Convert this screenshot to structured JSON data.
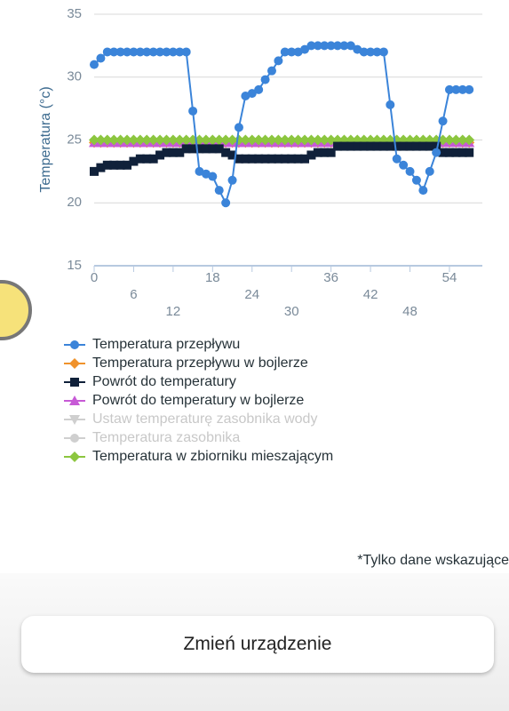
{
  "chart_data": {
    "type": "line",
    "y_label": "Temperatura (°c)",
    "x": [
      0,
      1,
      2,
      3,
      4,
      5,
      6,
      7,
      8,
      9,
      10,
      11,
      12,
      13,
      14,
      15,
      16,
      17,
      18,
      19,
      20,
      21,
      22,
      23,
      24,
      25,
      26,
      27,
      28,
      29,
      30,
      31,
      32,
      33,
      34,
      35,
      36,
      37,
      38,
      39,
      40,
      41,
      42,
      43,
      44,
      45,
      46,
      47,
      48,
      49,
      50,
      51,
      52,
      53,
      54,
      55,
      56,
      57
    ],
    "xlim": [
      0,
      59
    ],
    "xticks": [
      0,
      6,
      12,
      18,
      24,
      30,
      36,
      42,
      48,
      54
    ],
    "ylim": [
      15,
      35
    ],
    "yticks": [
      15,
      20,
      25,
      30,
      35
    ],
    "grid": true,
    "series": [
      {
        "name": "Temperatura przepływu",
        "color": "#3b84d9",
        "marker": "circle",
        "visible": true,
        "values": [
          31,
          31.5,
          32,
          32,
          32,
          32,
          32,
          32,
          32,
          32,
          32,
          32,
          32,
          32,
          32,
          27.3,
          22.5,
          22.3,
          22.1,
          21,
          20,
          21.8,
          26,
          28.5,
          28.7,
          29,
          29.8,
          30.5,
          31.3,
          32,
          32,
          32,
          32.2,
          32.5,
          32.5,
          32.5,
          32.5,
          32.5,
          32.5,
          32.5,
          32.2,
          32,
          32,
          32,
          32,
          27.8,
          23.5,
          23,
          22.5,
          21.8,
          21,
          22.5,
          24,
          26.5,
          29,
          29,
          29,
          29
        ]
      },
      {
        "name": "Temperatura przepływu w bojlerze",
        "color": "#f0922b",
        "marker": "diamond",
        "visible": true,
        "values": [
          24.8,
          24.8,
          24.8,
          24.8,
          24.8,
          24.8,
          24.8,
          24.8,
          24.8,
          24.8,
          24.8,
          24.8,
          24.8,
          24.8,
          24.8,
          24.8,
          24.8,
          24.8,
          24.8,
          24.8,
          24.8,
          24.8,
          24.8,
          24.8,
          24.8,
          24.8,
          24.8,
          24.8,
          24.8,
          24.8,
          24.8,
          24.8,
          24.8,
          24.8,
          24.8,
          24.8,
          24.8,
          24.8,
          24.8,
          24.8,
          24.8,
          24.8,
          24.8,
          24.8,
          24.8,
          24.8,
          24.8,
          24.8,
          24.8,
          24.8,
          24.8,
          24.8,
          24.8,
          24.8,
          24.8,
          24.8,
          24.8,
          24.8
        ]
      },
      {
        "name": "Powrót do temperatury",
        "color": "#10213a",
        "marker": "square",
        "visible": true,
        "values": [
          22.5,
          22.8,
          23,
          23,
          23,
          23,
          23.3,
          23.5,
          23.5,
          23.5,
          23.8,
          24,
          24,
          24,
          24.3,
          24.3,
          24.3,
          24.3,
          24.3,
          24.3,
          24,
          23.8,
          23.5,
          23.5,
          23.5,
          23.5,
          23.5,
          23.5,
          23.5,
          23.5,
          23.5,
          23.5,
          23.5,
          23.8,
          24,
          24,
          24,
          24.5,
          24.5,
          24.5,
          24.5,
          24.5,
          24.5,
          24.5,
          24.5,
          24.5,
          24.5,
          24.5,
          24.5,
          24.5,
          24.5,
          24.5,
          24.5,
          24,
          24,
          24,
          24,
          24
        ]
      },
      {
        "name": "Powrót do temperatury w bojlerze",
        "color": "#c75ad6",
        "marker": "triangle",
        "visible": true,
        "values": [
          24.8,
          24.8,
          24.8,
          24.8,
          24.8,
          24.8,
          24.8,
          24.8,
          24.8,
          24.8,
          24.8,
          24.8,
          24.8,
          24.8,
          24.8,
          24.8,
          24.8,
          24.8,
          24.8,
          24.8,
          24.8,
          24.8,
          24.8,
          24.8,
          24.8,
          24.8,
          24.8,
          24.8,
          24.8,
          24.8,
          24.8,
          24.8,
          24.8,
          24.8,
          24.8,
          24.8,
          24.8,
          24.8,
          24.8,
          24.8,
          24.8,
          24.8,
          24.8,
          24.8,
          24.8,
          24.8,
          24.8,
          24.8,
          24.8,
          24.8,
          24.8,
          24.8,
          24.8,
          24.8,
          24.8,
          24.8,
          24.8,
          24.8
        ]
      },
      {
        "name": "Ustaw temperaturę zasobnika wody",
        "color": "#cfcfcf",
        "marker": "triangle-down",
        "visible": false
      },
      {
        "name": "Temperatura zasobnika",
        "color": "#cfcfcf",
        "marker": "circle",
        "visible": false
      },
      {
        "name": "Temperatura w zbiorniku mieszającym",
        "color": "#8cc63f",
        "marker": "diamond",
        "visible": true,
        "values": [
          25,
          25,
          25,
          25,
          25,
          25,
          25,
          25,
          25,
          25,
          25,
          25,
          25,
          25,
          25,
          25,
          25,
          25,
          25,
          25,
          25,
          25,
          25,
          25,
          25,
          25,
          25,
          25,
          25,
          25,
          25,
          25,
          25,
          25,
          25,
          25,
          25,
          25,
          25,
          25,
          25,
          25,
          25,
          25,
          25,
          25,
          25,
          25,
          25,
          25,
          25,
          25,
          25,
          25,
          25,
          25,
          25,
          25
        ]
      }
    ]
  },
  "note": "*Tylko dane wskazujące",
  "button": "Zmień urządzenie"
}
